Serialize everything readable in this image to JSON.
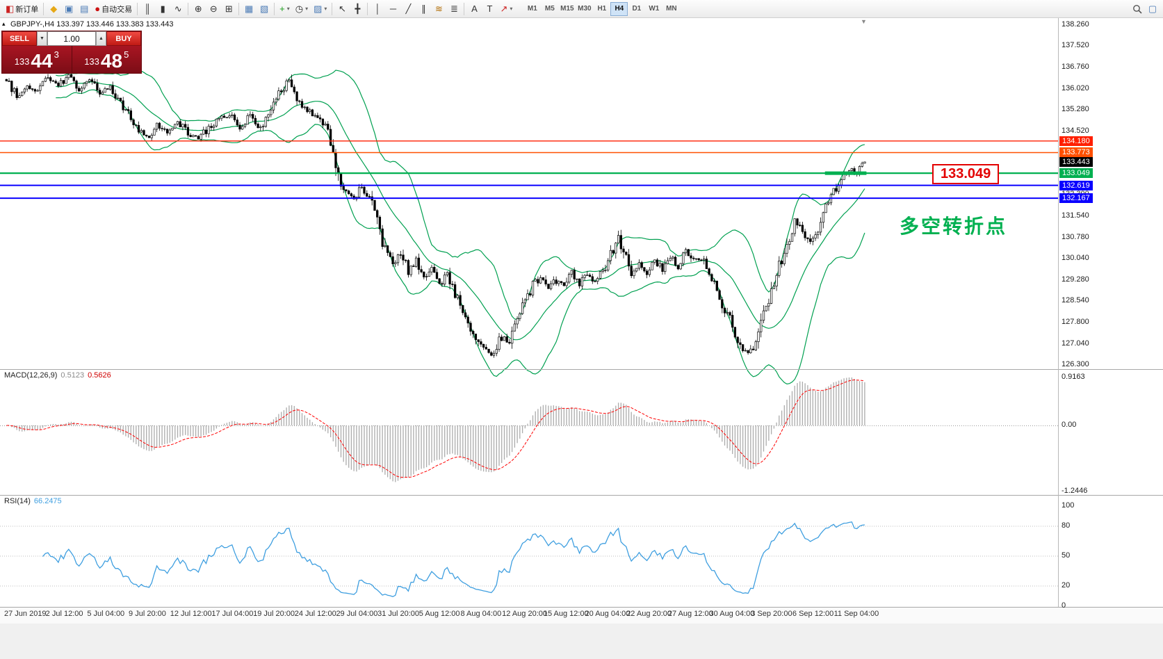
{
  "window": {
    "toolbar_bg": "#f4f4f4",
    "chart_bg": "#ffffff",
    "axis_border": "#b8b8b8",
    "panel_separator": "#a8a8a8"
  },
  "icons": {
    "spin_down": "▼",
    "spin_up": "▲",
    "dropdown": "▾",
    "shift_marker": "▼",
    "panel_toggle": "▴"
  },
  "toolbar": {
    "items": [
      {
        "name": "new-order-button",
        "glyph": "◧",
        "glyph_color": "#cc2222",
        "label": "新订单"
      },
      {
        "sep": true
      },
      {
        "name": "market-watch-button",
        "glyph": "◆",
        "glyph_color": "#e6a817"
      },
      {
        "name": "charts-window-button",
        "glyph": "▣",
        "glyph_color": "#4a7ab5"
      },
      {
        "name": "data-window-button",
        "glyph": "▤",
        "glyph_color": "#4a7ab5"
      },
      {
        "name": "autotrading-button",
        "glyph": "●",
        "glyph_color": "#cc1111",
        "label": "自动交易"
      },
      {
        "sep": true
      },
      {
        "name": "bar-chart-button",
        "glyph": "║",
        "glyph_color": "#333333"
      },
      {
        "name": "candlestick-chart-button",
        "glyph": "▮",
        "glyph_color": "#333333"
      },
      {
        "name": "line-chart-button",
        "glyph": "∿",
        "glyph_color": "#333333"
      },
      {
        "sep": true
      },
      {
        "name": "zoom-in-button",
        "glyph": "⊕",
        "glyph_color": "#333333"
      },
      {
        "name": "zoom-out-button",
        "glyph": "⊖",
        "glyph_color": "#333333"
      },
      {
        "name": "tile-windows-button",
        "glyph": "⊞",
        "glyph_color": "#333333"
      },
      {
        "sep": true
      },
      {
        "name": "cascade-windows-button",
        "glyph": "▦",
        "glyph_color": "#4a7ab5"
      },
      {
        "name": "arrange-windows-button",
        "glyph": "▧",
        "glyph_color": "#4a7ab5"
      },
      {
        "sep": true
      },
      {
        "name": "indicators-button",
        "glyph": "+",
        "glyph_color": "#1a9e1a",
        "dropdown": true
      },
      {
        "name": "periods-button",
        "glyph": "◷",
        "glyph_color": "#333333",
        "dropdown": true
      },
      {
        "name": "templates-button",
        "glyph": "▨",
        "glyph_color": "#4a7ab5",
        "dropdown": true
      },
      {
        "sep": true
      },
      {
        "name": "cursor-button",
        "glyph": "↖",
        "glyph_color": "#333333"
      },
      {
        "name": "crosshair-button",
        "glyph": "╋",
        "glyph_color": "#333333"
      },
      {
        "sep": true
      },
      {
        "name": "vertical-line-button",
        "glyph": "│",
        "glyph_color": "#333333"
      },
      {
        "name": "horizontal-line-button",
        "glyph": "─",
        "glyph_color": "#333333"
      },
      {
        "name": "trendline-button",
        "glyph": "╱",
        "glyph_color": "#333333"
      },
      {
        "name": "channel-button",
        "glyph": "∥",
        "glyph_color": "#333333"
      },
      {
        "name": "fibonacci-button",
        "glyph": "≋",
        "glyph_color": "#b06a00"
      },
      {
        "name": "cycle-lines-button",
        "glyph": "≣",
        "glyph_color": "#333333"
      },
      {
        "sep": true
      },
      {
        "name": "text-button",
        "glyph": "A",
        "glyph_color": "#333333"
      },
      {
        "name": "text-label-button",
        "glyph": "T",
        "glyph_color": "#333333"
      },
      {
        "name": "arrows-button",
        "glyph": "↗",
        "glyph_color": "#cc2222",
        "dropdown": true
      }
    ],
    "timeframes": [
      "M1",
      "M5",
      "M15",
      "M30",
      "H1",
      "H4",
      "D1",
      "W1",
      "MN"
    ],
    "active_timeframe": "H4",
    "right_items": [
      {
        "name": "search-button",
        "svg": "magnifier"
      },
      {
        "name": "new-window-button",
        "glyph": "▢",
        "glyph_color": "#4a7ab5"
      }
    ]
  },
  "trade_panel": {
    "sell_label": "SELL",
    "buy_label": "BUY",
    "volume": "1.00",
    "sell_price": {
      "prefix": "133",
      "big": "44",
      "sup": "3"
    },
    "buy_price": {
      "prefix": "133",
      "big": "48",
      "sup": "5"
    }
  },
  "chart": {
    "symbol": "GBPJPY-",
    "timeframe": "H4",
    "symbol_line": "GBPJPY-,H4  133.397 133.446 133.383 133.443"
  },
  "annotations": {
    "callout_text": "133.049",
    "callout_color": "#e30000",
    "turning_point_text": "多空转折点",
    "turning_point_color": "#00b050"
  },
  "macd": {
    "name": "MACD(12,26,9)",
    "value1": "0.5123",
    "value2": "0.5626",
    "axis": [
      "0.9163",
      "0.00",
      "-1.2446"
    ]
  },
  "rsi": {
    "name": "RSI(14)",
    "value": "66.2475",
    "axis": [
      "100",
      "80",
      "50",
      "20",
      "0"
    ]
  },
  "chart_data": {
    "type": "candlestick",
    "symbol": "GBPJPY-",
    "timeframe": "H4",
    "last_ohlc": [
      133.397,
      133.446,
      133.383,
      133.443
    ],
    "bars": 332,
    "price_axis": {
      "max": 138.26,
      "min": 126.3,
      "ticks": [
        "138.260",
        "137.520",
        "136.760",
        "136.020",
        "135.280",
        "134.520",
        "133.780",
        "133.040",
        "132.300",
        "131.540",
        "130.780",
        "130.040",
        "129.280",
        "128.540",
        "127.800",
        "127.040",
        "126.300"
      ]
    },
    "current_price": {
      "value": 133.443,
      "label": "133.443",
      "bg": "#000000"
    },
    "hlines": [
      {
        "price": 134.18,
        "label": "134.180",
        "color": "#ff1f00",
        "width": 1.4
      },
      {
        "price": 133.773,
        "label": "133.773",
        "color": "#ff5000",
        "width": 1.4
      },
      {
        "price": 133.049,
        "label": "133.049",
        "color": "#00b050",
        "width": 2.2
      },
      {
        "price": 132.619,
        "label": "132.619",
        "color": "#0a00ff",
        "width": 2
      },
      {
        "price": 132.167,
        "label": "132.167",
        "color": "#0a00ff",
        "width": 2
      }
    ],
    "bold_segment": {
      "price": 133.049,
      "from_bar": 316,
      "to_bar": 332,
      "color": "#00b050",
      "width": 5
    },
    "indicators": {
      "bollinger": {
        "period": 20,
        "deviation": 2,
        "color": "#00a050"
      },
      "macd": {
        "fast": 12,
        "slow": 26,
        "signal": 9,
        "histogram_color": "#ababab",
        "signal_color": "#ff0000"
      },
      "rsi": {
        "period": 14,
        "color": "#3f9fe0",
        "levels": [
          80,
          50,
          20
        ]
      }
    },
    "macd_axis": {
      "top": 0.9163,
      "zero": 0,
      "bottom": -1.2446
    },
    "price_anchors": [
      [
        0,
        136.35
      ],
      [
        4,
        135.75
      ],
      [
        8,
        136.15
      ],
      [
        12,
        135.95
      ],
      [
        16,
        136.4
      ],
      [
        20,
        136.15
      ],
      [
        24,
        136.45
      ],
      [
        28,
        136.05
      ],
      [
        32,
        136.35
      ],
      [
        36,
        135.85
      ],
      [
        40,
        136.05
      ],
      [
        44,
        135.5
      ],
      [
        48,
        135.0
      ],
      [
        52,
        134.45
      ],
      [
        55,
        134.3
      ],
      [
        58,
        134.75
      ],
      [
        62,
        134.5
      ],
      [
        66,
        134.85
      ],
      [
        70,
        134.45
      ],
      [
        74,
        134.25
      ],
      [
        78,
        134.65
      ],
      [
        82,
        134.95
      ],
      [
        86,
        135.15
      ],
      [
        90,
        134.7
      ],
      [
        94,
        135.05
      ],
      [
        98,
        134.65
      ],
      [
        102,
        135.35
      ],
      [
        106,
        135.95
      ],
      [
        109,
        136.3
      ],
      [
        112,
        135.55
      ],
      [
        116,
        135.25
      ],
      [
        120,
        135.0
      ],
      [
        124,
        134.55
      ],
      [
        126,
        133.6
      ],
      [
        128,
        132.75
      ],
      [
        131,
        132.3
      ],
      [
        134,
        132.2
      ],
      [
        137,
        132.55
      ],
      [
        140,
        132.25
      ],
      [
        143,
        131.3
      ],
      [
        146,
        130.3
      ],
      [
        149,
        129.85
      ],
      [
        152,
        130.25
      ],
      [
        155,
        129.6
      ],
      [
        158,
        129.95
      ],
      [
        161,
        129.35
      ],
      [
        164,
        129.7
      ],
      [
        167,
        129.15
      ],
      [
        170,
        129.45
      ],
      [
        173,
        128.8
      ],
      [
        176,
        128.1
      ],
      [
        179,
        127.5
      ],
      [
        182,
        127.0
      ],
      [
        185,
        126.8
      ],
      [
        188,
        126.65
      ],
      [
        191,
        127.35
      ],
      [
        194,
        127.05
      ],
      [
        197,
        127.95
      ],
      [
        200,
        128.55
      ],
      [
        203,
        129.1
      ],
      [
        206,
        129.4
      ],
      [
        209,
        128.9
      ],
      [
        212,
        129.3
      ],
      [
        215,
        129.05
      ],
      [
        218,
        129.5
      ],
      [
        221,
        129.15
      ],
      [
        224,
        129.6
      ],
      [
        227,
        129.25
      ],
      [
        230,
        129.6
      ],
      [
        233,
        130.2
      ],
      [
        236,
        130.85
      ],
      [
        238,
        130.25
      ],
      [
        241,
        129.45
      ],
      [
        244,
        129.85
      ],
      [
        247,
        129.55
      ],
      [
        250,
        130.0
      ],
      [
        253,
        129.65
      ],
      [
        256,
        130.1
      ],
      [
        259,
        129.75
      ],
      [
        262,
        130.3
      ],
      [
        265,
        129.9
      ],
      [
        268,
        130.05
      ],
      [
        271,
        129.5
      ],
      [
        274,
        128.85
      ],
      [
        277,
        128.25
      ],
      [
        280,
        127.7
      ],
      [
        283,
        127.0
      ],
      [
        286,
        126.7
      ],
      [
        289,
        127.1
      ],
      [
        292,
        128.0
      ],
      [
        295,
        128.9
      ],
      [
        298,
        129.8
      ],
      [
        301,
        130.6
      ],
      [
        304,
        131.3
      ],
      [
        307,
        131.0
      ],
      [
        310,
        130.5
      ],
      [
        313,
        131.05
      ],
      [
        316,
        131.8
      ],
      [
        319,
        132.35
      ],
      [
        321,
        132.75
      ],
      [
        323,
        133.0
      ],
      [
        325,
        133.2
      ],
      [
        327,
        133.0
      ],
      [
        329,
        133.25
      ],
      [
        331,
        133.44
      ]
    ],
    "time_labels": [
      {
        "bar": 0,
        "text": "27 Jun 2019"
      },
      {
        "bar": 16,
        "text": "2 Jul 12:00"
      },
      {
        "bar": 32,
        "text": "5 Jul 04:00"
      },
      {
        "bar": 48,
        "text": "9 Jul 20:00"
      },
      {
        "bar": 64,
        "text": "12 Jul 12:00"
      },
      {
        "bar": 80,
        "text": "17 Jul 04:00"
      },
      {
        "bar": 96,
        "text": "19 Jul 20:00"
      },
      {
        "bar": 112,
        "text": "24 Jul 12:00"
      },
      {
        "bar": 128,
        "text": "29 Jul 04:00"
      },
      {
        "bar": 144,
        "text": "31 Jul 20:00"
      },
      {
        "bar": 160,
        "text": "5 Aug 12:00"
      },
      {
        "bar": 176,
        "text": "8 Aug 04:00"
      },
      {
        "bar": 192,
        "text": "12 Aug 20:00"
      },
      {
        "bar": 208,
        "text": "15 Aug 12:00"
      },
      {
        "bar": 224,
        "text": "20 Aug 04:00"
      },
      {
        "bar": 240,
        "text": "22 Aug 20:00"
      },
      {
        "bar": 256,
        "text": "27 Aug 12:00"
      },
      {
        "bar": 272,
        "text": "30 Aug 04:00"
      },
      {
        "bar": 288,
        "text": "3 Sep 20:00"
      },
      {
        "bar": 304,
        "text": "6 Sep 12:00"
      },
      {
        "bar": 320,
        "text": "11 Sep 04:00"
      }
    ]
  }
}
